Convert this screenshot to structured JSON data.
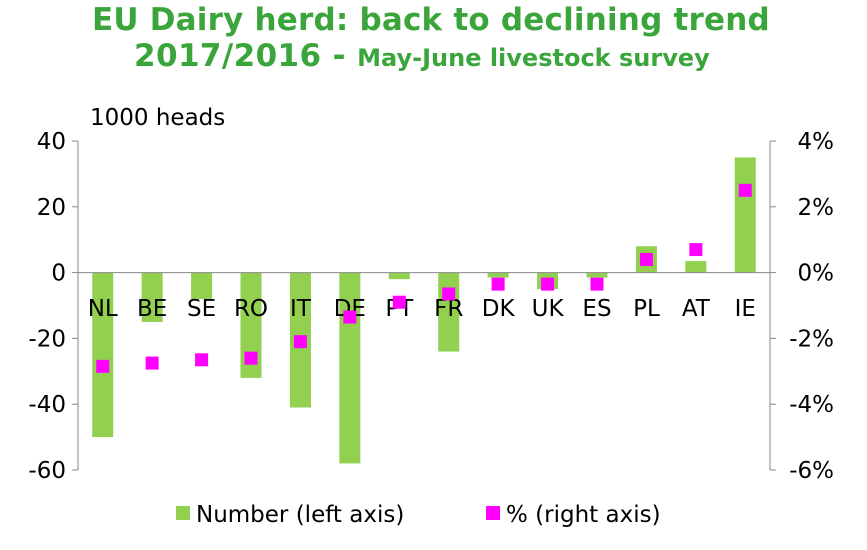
{
  "title": {
    "line1": "EU Dairy herd: back to declining trend",
    "line2_main": "2017/2016 - ",
    "line2_sub": "May-June livestock survey"
  },
  "colors": {
    "title": "#3aa53a",
    "bar": "#92d050",
    "marker": "#ff00ff",
    "axis": "#888888",
    "text": "#000000"
  },
  "chart_data": {
    "type": "bar",
    "unit_label": "1000 heads",
    "categories": [
      "NL",
      "BE",
      "SE",
      "RO",
      "IT",
      "DE",
      "PT",
      "FR",
      "DK",
      "UK",
      "ES",
      "PL",
      "AT",
      "IE"
    ],
    "series": [
      {
        "name": "Number (left axis)",
        "kind": "bar",
        "axis": "left",
        "values": [
          -50,
          -15,
          -8,
          -32,
          -41,
          -58,
          -2,
          -24,
          -1.5,
          -5,
          -1.5,
          8,
          3.5,
          35
        ]
      },
      {
        "name": "% (right axis)",
        "kind": "marker",
        "axis": "right",
        "values": [
          -2.85,
          -2.75,
          -2.65,
          -2.6,
          -2.1,
          -1.35,
          -0.9,
          -0.65,
          -0.35,
          -0.35,
          -0.35,
          0.4,
          0.7,
          2.5
        ]
      }
    ],
    "y_left": {
      "min": -60,
      "max": 40,
      "ticks": [
        40,
        20,
        0,
        -20,
        -40,
        -60
      ],
      "tick_labels": [
        "40",
        "20",
        "0",
        "-20",
        "-40",
        "-60"
      ]
    },
    "y_right": {
      "min": -6,
      "max": 4,
      "ticks": [
        4,
        2,
        0,
        -2,
        -4,
        -6
      ],
      "tick_labels": [
        "4%",
        "2%",
        "0%",
        "-2%",
        "-4%",
        "-6%"
      ]
    },
    "grid": false,
    "legend_position": "bottom"
  }
}
